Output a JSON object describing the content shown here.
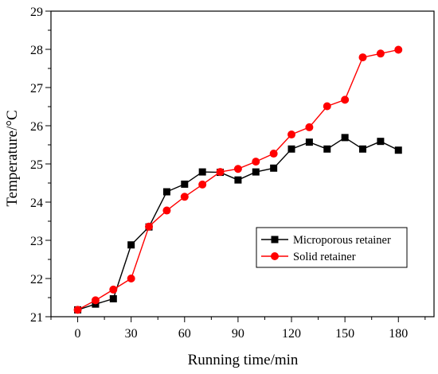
{
  "chart_data": {
    "type": "line",
    "title": "",
    "xlabel": "Running time/min",
    "ylabel": "Temperature/°C",
    "xlim": [
      -15,
      200
    ],
    "ylim": [
      21,
      29
    ],
    "xticks": [
      0,
      30,
      60,
      90,
      120,
      150,
      180
    ],
    "yticks": [
      21,
      22,
      23,
      24,
      25,
      26,
      27,
      28,
      29
    ],
    "grid": false,
    "legend_position": "lower-right",
    "series": [
      {
        "name": "Microporous retainer",
        "color": "#000000",
        "marker": "square",
        "x": [
          0,
          10,
          20,
          30,
          40,
          50,
          60,
          70,
          80,
          90,
          100,
          110,
          120,
          130,
          140,
          150,
          160,
          170,
          180
        ],
        "y": [
          21.18,
          21.33,
          21.47,
          22.88,
          23.35,
          24.27,
          24.47,
          24.79,
          24.78,
          24.58,
          24.79,
          24.89,
          25.39,
          25.57,
          25.39,
          25.69,
          25.39,
          25.59,
          25.36
        ]
      },
      {
        "name": "Solid retainer",
        "color": "#ff0000",
        "marker": "circle",
        "x": [
          0,
          10,
          20,
          30,
          40,
          50,
          60,
          70,
          80,
          90,
          100,
          110,
          120,
          130,
          140,
          150,
          160,
          170,
          180
        ],
        "y": [
          21.18,
          21.43,
          21.71,
          22.0,
          23.36,
          23.78,
          24.14,
          24.46,
          24.79,
          24.87,
          25.06,
          25.27,
          25.77,
          25.96,
          26.51,
          26.68,
          27.79,
          27.89,
          27.99
        ]
      }
    ]
  }
}
